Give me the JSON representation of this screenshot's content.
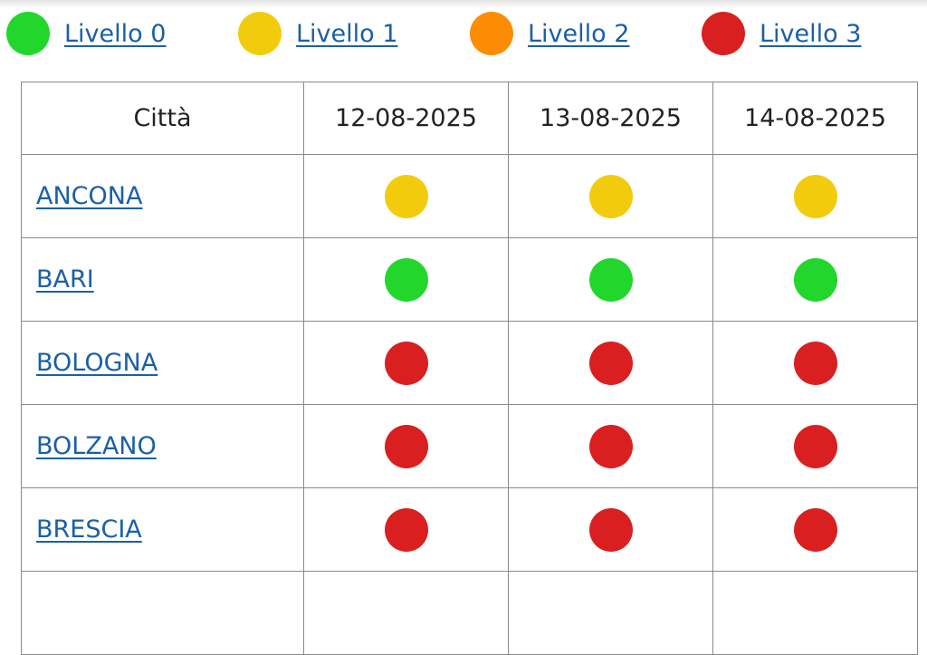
{
  "colors": {
    "level_0": "#22d62c",
    "level_1": "#f2cc0c",
    "level_2": "#fb8c04",
    "level_3": "#d91f1f",
    "link": "#1a5fa8"
  },
  "legend": [
    {
      "label": "Livello 0",
      "level": 0
    },
    {
      "label": "Livello 1",
      "level": 1
    },
    {
      "label": "Livello 2",
      "level": 2
    },
    {
      "label": "Livello 3",
      "level": 3
    }
  ],
  "table": {
    "headers": [
      "Città",
      "12-08-2025",
      "13-08-2025",
      "14-08-2025"
    ],
    "rows": [
      {
        "city": "ANCONA",
        "levels": [
          1,
          1,
          1
        ]
      },
      {
        "city": "BARI",
        "levels": [
          0,
          0,
          0
        ]
      },
      {
        "city": "BOLOGNA",
        "levels": [
          3,
          3,
          3
        ]
      },
      {
        "city": "BOLZANO",
        "levels": [
          3,
          3,
          3
        ]
      },
      {
        "city": "BRESCIA",
        "levels": [
          3,
          3,
          3
        ]
      }
    ]
  }
}
